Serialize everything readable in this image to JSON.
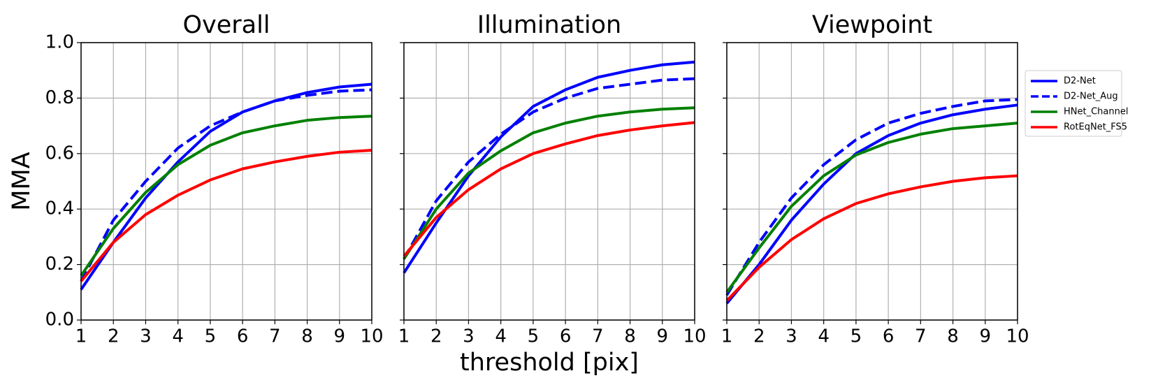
{
  "chart_data": [
    {
      "type": "line",
      "title": "Overall",
      "y_label": "MMA",
      "x": [
        1,
        2,
        3,
        4,
        5,
        6,
        7,
        8,
        9,
        10
      ],
      "xlim": [
        1,
        10
      ],
      "xticks": [
        1,
        2,
        3,
        4,
        5,
        6,
        7,
        8,
        9,
        10
      ],
      "ylim": [
        0,
        1
      ],
      "yticks": [
        {
          "value": 0,
          "label": "0.0"
        },
        0.2,
        0.4,
        0.6,
        0.8,
        {
          "value": 1,
          "label": "1.0"
        }
      ],
      "grid": true,
      "series": [
        {
          "name": "D2-Net",
          "color": "#0000ff",
          "dash": false,
          "values": [
            0.11,
            0.28,
            0.44,
            0.57,
            0.68,
            0.75,
            0.79,
            0.82,
            0.84,
            0.85
          ]
        },
        {
          "name": "D2-Net_Aug",
          "color": "#0000ff",
          "dash": true,
          "values": [
            0.14,
            0.36,
            0.5,
            0.62,
            0.7,
            0.75,
            0.79,
            0.81,
            0.825,
            0.83
          ]
        },
        {
          "name": "HNet_Channel",
          "color": "#008000",
          "dash": false,
          "values": [
            0.16,
            0.33,
            0.46,
            0.56,
            0.63,
            0.675,
            0.7,
            0.72,
            0.73,
            0.735
          ]
        },
        {
          "name": "RotEqNet_FS5",
          "color": "#ff0000",
          "dash": false,
          "values": [
            0.14,
            0.28,
            0.38,
            0.45,
            0.505,
            0.545,
            0.57,
            0.59,
            0.605,
            0.612
          ]
        }
      ]
    },
    {
      "type": "line",
      "title": "Illumination",
      "x_label": "threshold [pix]",
      "x": [
        1,
        2,
        3,
        4,
        5,
        6,
        7,
        8,
        9,
        10
      ],
      "xlim": [
        1,
        10
      ],
      "xticks": [
        1,
        2,
        3,
        4,
        5,
        6,
        7,
        8,
        9,
        10
      ],
      "ylim": [
        0,
        1
      ],
      "yticks": [
        0,
        0.2,
        0.4,
        0.6,
        0.8,
        1
      ],
      "grid": true,
      "series": [
        {
          "name": "D2-Net",
          "color": "#0000ff",
          "dash": false,
          "values": [
            0.17,
            0.35,
            0.52,
            0.66,
            0.77,
            0.83,
            0.875,
            0.9,
            0.92,
            0.93
          ]
        },
        {
          "name": "D2-Net_Aug",
          "color": "#0000ff",
          "dash": true,
          "values": [
            0.22,
            0.43,
            0.57,
            0.67,
            0.75,
            0.8,
            0.835,
            0.85,
            0.865,
            0.87
          ]
        },
        {
          "name": "HNet_Channel",
          "color": "#008000",
          "dash": false,
          "values": [
            0.22,
            0.4,
            0.53,
            0.61,
            0.675,
            0.71,
            0.735,
            0.75,
            0.76,
            0.765
          ]
        },
        {
          "name": "RotEqNet_FS5",
          "color": "#ff0000",
          "dash": false,
          "values": [
            0.23,
            0.37,
            0.47,
            0.545,
            0.6,
            0.635,
            0.665,
            0.685,
            0.7,
            0.712
          ]
        }
      ]
    },
    {
      "type": "line",
      "title": "Viewpoint",
      "legend": "outside-right",
      "x": [
        1,
        2,
        3,
        4,
        5,
        6,
        7,
        8,
        9,
        10
      ],
      "xlim": [
        1,
        10
      ],
      "xticks": [
        1,
        2,
        3,
        4,
        5,
        6,
        7,
        8,
        9,
        10
      ],
      "ylim": [
        0,
        1
      ],
      "yticks": [
        0,
        0.2,
        0.4,
        0.6,
        0.8,
        1
      ],
      "grid": true,
      "series": [
        {
          "name": "D2-Net",
          "color": "#0000ff",
          "dash": false,
          "values": [
            0.06,
            0.2,
            0.36,
            0.49,
            0.6,
            0.665,
            0.71,
            0.74,
            0.76,
            0.775
          ]
        },
        {
          "name": "D2-Net_Aug",
          "color": "#0000ff",
          "dash": true,
          "values": [
            0.09,
            0.28,
            0.44,
            0.56,
            0.65,
            0.71,
            0.745,
            0.77,
            0.79,
            0.795
          ]
        },
        {
          "name": "HNet_Channel",
          "color": "#008000",
          "dash": false,
          "values": [
            0.1,
            0.26,
            0.41,
            0.52,
            0.595,
            0.64,
            0.67,
            0.69,
            0.7,
            0.71
          ]
        },
        {
          "name": "RotEqNet_FS5",
          "color": "#ff0000",
          "dash": false,
          "values": [
            0.07,
            0.19,
            0.29,
            0.365,
            0.42,
            0.455,
            0.48,
            0.5,
            0.513,
            0.52
          ]
        }
      ]
    }
  ]
}
